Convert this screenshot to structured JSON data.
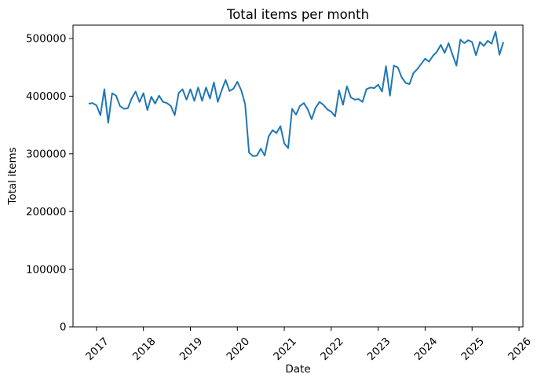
{
  "figure": {
    "background": "#ffffff",
    "text_color": "#000000",
    "spine_color": "#000000"
  },
  "chart_data": {
    "type": "line",
    "title": "Total items per month",
    "xlabel": "Date",
    "ylabel": "Total items",
    "grid": false,
    "legend": null,
    "x_tick_rotation": 45,
    "xlim": [
      "2016-07",
      "2026-02"
    ],
    "ylim": [
      0,
      523160
    ],
    "x_ticks": [
      "2017",
      "2018",
      "2019",
      "2020",
      "2021",
      "2022",
      "2023",
      "2024",
      "2025",
      "2026"
    ],
    "y_ticks": [
      0,
      100000,
      200000,
      300000,
      400000,
      500000
    ],
    "series": [
      {
        "name": "Total items",
        "color": "#1f77b4",
        "line_width": 2,
        "x": [
          "2016-11",
          "2016-12",
          "2017-01",
          "2017-02",
          "2017-03",
          "2017-04",
          "2017-05",
          "2017-06",
          "2017-07",
          "2017-08",
          "2017-09",
          "2017-10",
          "2017-11",
          "2017-12",
          "2018-01",
          "2018-02",
          "2018-03",
          "2018-04",
          "2018-05",
          "2018-06",
          "2018-07",
          "2018-08",
          "2018-09",
          "2018-10",
          "2018-11",
          "2018-12",
          "2019-01",
          "2019-02",
          "2019-03",
          "2019-04",
          "2019-05",
          "2019-06",
          "2019-07",
          "2019-08",
          "2019-09",
          "2019-10",
          "2019-11",
          "2019-12",
          "2020-01",
          "2020-02",
          "2020-03",
          "2020-04",
          "2020-05",
          "2020-06",
          "2020-07",
          "2020-08",
          "2020-09",
          "2020-10",
          "2020-11",
          "2020-12",
          "2021-01",
          "2021-02",
          "2021-03",
          "2021-04",
          "2021-05",
          "2021-06",
          "2021-07",
          "2021-08",
          "2021-09",
          "2021-10",
          "2021-11",
          "2021-12",
          "2022-01",
          "2022-02",
          "2022-03",
          "2022-04",
          "2022-05",
          "2022-06",
          "2022-07",
          "2022-08",
          "2022-09",
          "2022-10",
          "2022-11",
          "2022-12",
          "2023-01",
          "2023-02",
          "2023-03",
          "2023-04",
          "2023-05",
          "2023-06",
          "2023-07",
          "2023-08",
          "2023-09",
          "2023-10",
          "2023-11",
          "2023-12",
          "2024-01",
          "2024-02",
          "2024-03",
          "2024-04",
          "2024-05",
          "2024-06",
          "2024-07",
          "2024-08",
          "2024-09",
          "2024-10",
          "2024-11",
          "2024-12",
          "2025-01",
          "2025-02",
          "2025-03",
          "2025-04",
          "2025-05",
          "2025-06",
          "2025-07",
          "2025-08",
          "2025-09"
        ],
        "values": [
          387000,
          388000,
          384000,
          367000,
          412000,
          354000,
          405000,
          401000,
          383000,
          378000,
          379000,
          396000,
          408000,
          390000,
          405000,
          376000,
          399000,
          387000,
          401000,
          390000,
          388000,
          383000,
          367000,
          405000,
          412000,
          394000,
          412000,
          392000,
          415000,
          392000,
          415000,
          396000,
          424000,
          390000,
          410000,
          428000,
          409000,
          413000,
          425000,
          410000,
          386000,
          302000,
          296000,
          297000,
          309000,
          297000,
          330000,
          341000,
          336000,
          348000,
          318000,
          310000,
          378000,
          368000,
          383000,
          388000,
          377000,
          360000,
          380000,
          390000,
          385000,
          377000,
          373000,
          365000,
          410000,
          385000,
          417000,
          398000,
          394000,
          395000,
          390000,
          412000,
          415000,
          414000,
          420000,
          408000,
          452000,
          401000,
          453000,
          450000,
          433000,
          423000,
          421000,
          440000,
          447000,
          456000,
          465000,
          460000,
          470000,
          477000,
          489000,
          475000,
          492000,
          472000,
          453000,
          498000,
          492000,
          497000,
          494000,
          471000,
          494000,
          487000,
          496000,
          491000,
          512000,
          472000,
          494000
        ]
      }
    ]
  }
}
